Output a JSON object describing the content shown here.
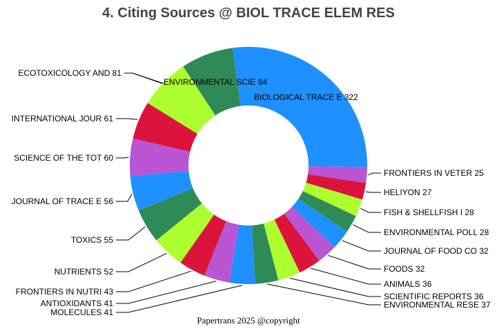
{
  "chart_data": {
    "type": "pie",
    "donut": true,
    "title": "4. Citing Sources @ BIOL TRACE ELEM RES",
    "footer": "Papertrans 2025 @copyright",
    "slices": [
      {
        "label": "BIOLOGICAL TRACE E",
        "value": 322,
        "color": "#1E90FF"
      },
      {
        "label": "FRONTIERS IN VETER",
        "value": 25,
        "color": "#BA55D3"
      },
      {
        "label": "HELIYON",
        "value": 27,
        "color": "#DC143C"
      },
      {
        "label": "FISH & SHELLFISH I",
        "value": 28,
        "color": "#ADFF2F"
      },
      {
        "label": "ENVIRONMENTAL POLL",
        "value": 28,
        "color": "#2E8B57"
      },
      {
        "label": "JOURNAL OF FOOD CO",
        "value": 32,
        "color": "#1E90FF"
      },
      {
        "label": "FOODS",
        "value": 32,
        "color": "#BA55D3"
      },
      {
        "label": "ANIMALS",
        "value": 36,
        "color": "#DC143C"
      },
      {
        "label": "SCIENTIFIC REPORTS",
        "value": 36,
        "color": "#ADFF2F"
      },
      {
        "label": "ENVIRONMENTAL RESE",
        "value": 37,
        "color": "#2E8B57"
      },
      {
        "label": "MOLECULES",
        "value": 41,
        "color": "#1E90FF"
      },
      {
        "label": "ANTIOXIDANTS",
        "value": 41,
        "color": "#BA55D3"
      },
      {
        "label": "FRONTIERS IN NUTRI",
        "value": 43,
        "color": "#DC143C"
      },
      {
        "label": "NUTRIENTS",
        "value": 52,
        "color": "#ADFF2F"
      },
      {
        "label": "TOXICS",
        "value": 55,
        "color": "#2E8B57"
      },
      {
        "label": "JOURNAL OF TRACE E",
        "value": 56,
        "color": "#1E90FF"
      },
      {
        "label": "SCIENCE OF THE TOT",
        "value": 60,
        "color": "#BA55D3"
      },
      {
        "label": "INTERNATIONAL JOUR",
        "value": 61,
        "color": "#DC143C"
      },
      {
        "label": "ECOTOXICOLOGY AND ",
        "value": 81,
        "color": "#ADFF2F"
      },
      {
        "label": "ENVIRONMENTAL SCIE",
        "value": 84,
        "color": "#2E8B57"
      }
    ]
  }
}
